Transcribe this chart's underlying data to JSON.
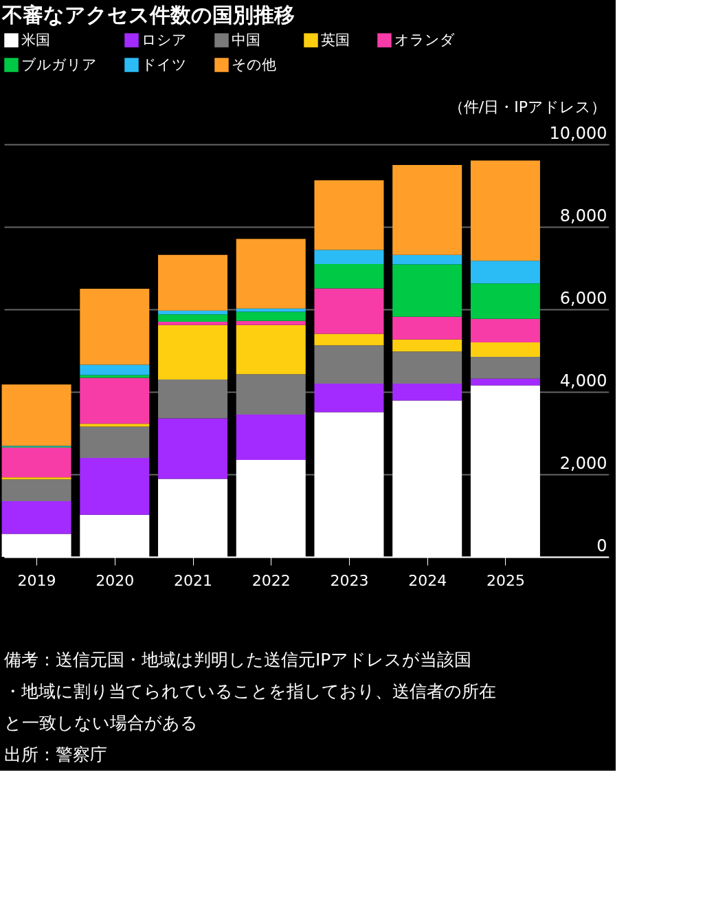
{
  "chart_data": {
    "type": "bar",
    "stacked": true,
    "title": "不審なアクセス件数の国別推移",
    "ylabel": "（件/日・IPアドレス）",
    "categories": [
      "2019",
      "2020",
      "2021",
      "2022",
      "2023",
      "2024",
      "2025"
    ],
    "series": [
      {
        "name": "米国",
        "color": "#ffffff",
        "values": [
          560,
          1020,
          1890,
          2350,
          3510,
          3790,
          4160
        ]
      },
      {
        "name": "ロシア",
        "color": "#a32bff",
        "values": [
          790,
          1380,
          1470,
          1100,
          690,
          410,
          160
        ]
      },
      {
        "name": "中国",
        "color": "#7a7a7a",
        "values": [
          530,
          760,
          940,
          980,
          930,
          780,
          530
        ]
      },
      {
        "name": "英国",
        "color": "#fdcf10",
        "values": [
          50,
          70,
          1320,
          1190,
          280,
          290,
          350
        ]
      },
      {
        "name": "オランダ",
        "color": "#f83ca7",
        "values": [
          720,
          1110,
          80,
          100,
          1100,
          550,
          570
        ]
      },
      {
        "name": "ブルガリア",
        "color": "#00c945",
        "values": [
          20,
          70,
          180,
          220,
          590,
          1270,
          860
        ]
      },
      {
        "name": "ドイツ",
        "color": "#2bbcf5",
        "values": [
          20,
          250,
          90,
          80,
          340,
          230,
          550
        ]
      },
      {
        "name": "その他",
        "color": "#ff9f2a",
        "values": [
          1490,
          1840,
          1350,
          1690,
          1690,
          2180,
          2430
        ]
      }
    ],
    "ylim": [
      0,
      10000
    ],
    "yticks": [
      {
        "value": 0,
        "label": "0"
      },
      {
        "value": 2000,
        "label": "2,000"
      },
      {
        "value": 4000,
        "label": "4,000"
      },
      {
        "value": 6000,
        "label": "6,000"
      },
      {
        "value": 8000,
        "label": "8,000"
      },
      {
        "value": 10000,
        "label": "10,000"
      }
    ],
    "grid": "y",
    "legend": "top left",
    "annotations": [
      "備考：送信元国・地域は判明した送信元IPアドレスが当該国・地域に割り当てられていることを指しており、送信者の所在と一致しない場合がある",
      "出所：警察庁"
    ]
  }
}
